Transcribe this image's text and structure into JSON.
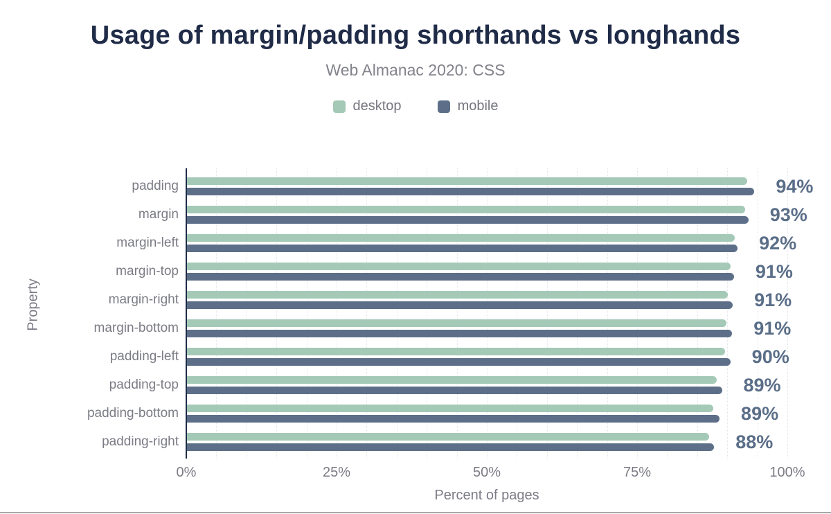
{
  "title": "Usage of margin/padding shorthands vs longhands",
  "subtitle": "Web Almanac 2020: CSS",
  "legend": [
    {
      "label": "desktop",
      "color": "#a4c9b7"
    },
    {
      "label": "mobile",
      "color": "#5d6f88"
    }
  ],
  "chart_data": {
    "type": "bar",
    "orientation": "horizontal",
    "title": "Usage of margin/padding shorthands vs longhands",
    "subtitle": "Web Almanac 2020: CSS",
    "categories": [
      "padding",
      "margin",
      "margin-left",
      "margin-top",
      "margin-right",
      "margin-bottom",
      "padding-left",
      "padding-top",
      "padding-bottom",
      "padding-right"
    ],
    "series": [
      {
        "name": "desktop",
        "color": "#a4c9b7",
        "values": [
          93.2,
          92.9,
          91.1,
          90.4,
          90.0,
          89.7,
          89.5,
          88.1,
          87.5,
          86.9
        ]
      },
      {
        "name": "mobile",
        "color": "#5d6f88",
        "values": [
          94.4,
          93.4,
          91.6,
          91.0,
          90.8,
          90.7,
          90.4,
          89.0,
          88.6,
          87.7
        ]
      }
    ],
    "value_labels": [
      "94%",
      "93%",
      "92%",
      "91%",
      "91%",
      "91%",
      "90%",
      "89%",
      "89%",
      "88%"
    ],
    "xlabel": "Percent of pages",
    "ylabel": "Property",
    "x_ticks": [
      "0%",
      "25%",
      "50%",
      "75%",
      "100%"
    ],
    "x_tick_values": [
      0,
      25,
      50,
      75,
      100
    ],
    "xlim": [
      0,
      100
    ],
    "grid": "vertical dotted minor gridlines every 5%",
    "legend_position": "top"
  },
  "colors": {
    "title": "#1f2b47",
    "axis_line": "#1f2b47",
    "text_gray": "#7b7c85",
    "value_label": "#5a6e88",
    "desktop": "#a4c9b7",
    "mobile": "#5d6f88",
    "gridline": "#e3e6eb",
    "bottom_rule": "#a8a8a8",
    "background": "#ffffff"
  }
}
